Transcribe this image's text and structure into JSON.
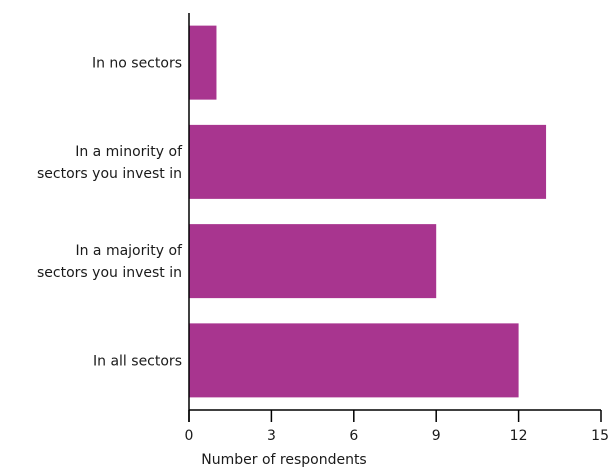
{
  "chart_data": {
    "type": "bar",
    "orientation": "horizontal",
    "categories": [
      [
        "In no sectors"
      ],
      [
        "In a minority of",
        "sectors you invest in"
      ],
      [
        "In a majority of",
        "sectors you invest in"
      ],
      [
        "In all sectors"
      ]
    ],
    "values": [
      1,
      13,
      9,
      12
    ],
    "xlabel": "Number of respondents",
    "xlim": [
      0,
      15
    ],
    "xticks": [
      0,
      3,
      6,
      9,
      12,
      15
    ],
    "grid": false,
    "bar_color": "#a8358f",
    "axis_color": "#000000"
  }
}
